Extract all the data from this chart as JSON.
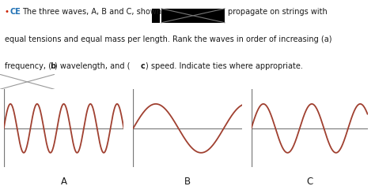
{
  "ce_color": "#2272b5",
  "bullet_color": "#cc2200",
  "text_color": "#1a1a1a",
  "wave_color": "#a04030",
  "axis_color": "#777777",
  "separator_color": "#aaaaaa",
  "background_color": "#ffffff",
  "black_box_color": "#000000",
  "wave_A_freq": 4.5,
  "wave_B_freq": 1.2,
  "wave_C_freq": 2.4,
  "wave_amplitude": 1.0,
  "label_A": "A",
  "label_B": "B",
  "label_C": "C",
  "fontsize_text": 7.0,
  "fontsize_label": 8.5
}
